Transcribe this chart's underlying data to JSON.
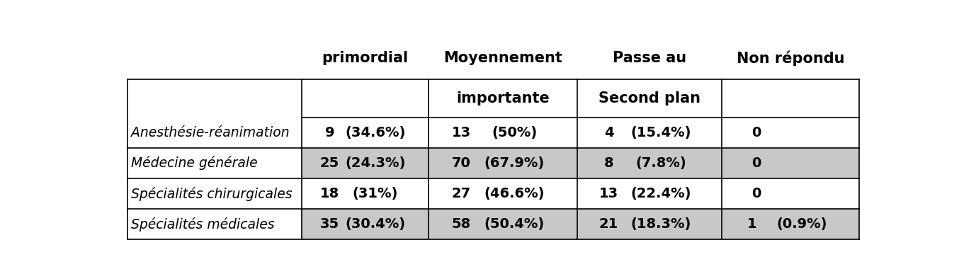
{
  "col_headers_line1": [
    "primordial",
    "Moyennement",
    "Passe au",
    "Non répondu"
  ],
  "col_headers_line2": [
    "",
    "importante",
    "Second plan",
    ""
  ],
  "rows": [
    {
      "label": "Anesthésie-réanimation",
      "num": [
        "9",
        "13",
        "4",
        "0"
      ],
      "pct": [
        "(34.6%)",
        "(50%)",
        "(15.4%)",
        ""
      ],
      "shaded": false
    },
    {
      "label": "Médecine générale",
      "num": [
        "25",
        "70",
        "8",
        "0"
      ],
      "pct": [
        "(24.3%)",
        "(67.9%)",
        "(7.8%)",
        ""
      ],
      "shaded": true
    },
    {
      "label": "Spécialités chirurgicales",
      "num": [
        "18",
        "27",
        "13",
        "0"
      ],
      "pct": [
        "(31%)",
        "(46.6%)",
        "(22.4%)",
        ""
      ],
      "shaded": false
    },
    {
      "label": "Spécialités médicales",
      "num": [
        "35",
        "58",
        "21",
        "1"
      ],
      "pct": [
        "(30.4%)",
        "(50.4%)",
        "(18.3%)",
        "(0.9%)"
      ],
      "shaded": true
    }
  ],
  "shaded_color": "#c8c8c8",
  "white_color": "#ffffff",
  "border_color": "#000000",
  "text_color": "#000000",
  "label_fontsize": 13.5,
  "header_fontsize": 15,
  "cell_fontsize": 14,
  "fig_width": 13.54,
  "fig_height": 3.87
}
